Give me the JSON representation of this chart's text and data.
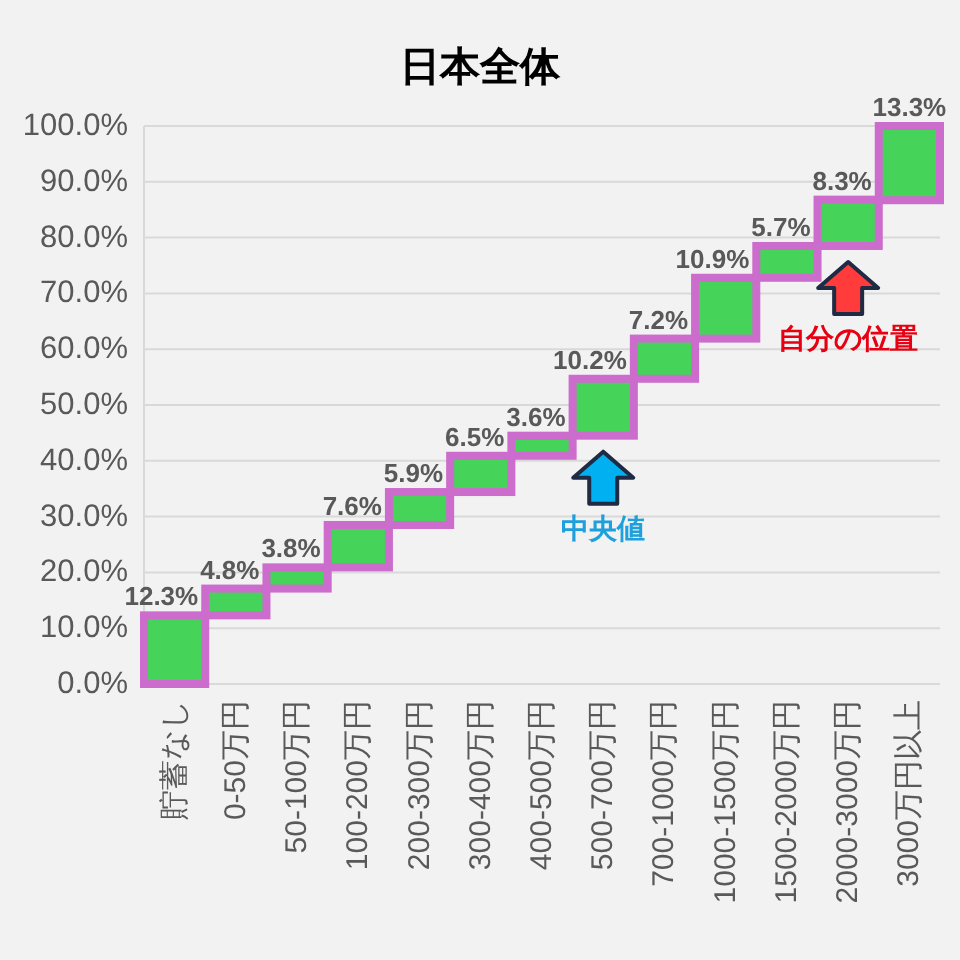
{
  "chart_data": {
    "type": "bar",
    "title": "日本全体",
    "categories": [
      "貯蓄なし",
      "0-50万円",
      "50-100万円",
      "100-200万円",
      "200-300万円",
      "300-400万円",
      "400-500万円",
      "500-700万円",
      "700-1000万円",
      "1000-1500万円",
      "1500-2000万円",
      "2000-3000万円",
      "3000万円以上"
    ],
    "values": [
      12.3,
      4.8,
      3.8,
      7.6,
      5.9,
      6.5,
      3.6,
      10.2,
      7.2,
      10.9,
      5.7,
      8.3,
      13.3
    ],
    "base": [
      0,
      12.3,
      17.1,
      20.9,
      28.5,
      34.4,
      40.9,
      44.5,
      54.7,
      61.9,
      72.8,
      78.5,
      86.7
    ],
    "value_labels": [
      "12.3%",
      "4.8%",
      "3.8%",
      "7.6%",
      "5.9%",
      "6.5%",
      "3.6%",
      "10.2%",
      "7.2%",
      "10.9%",
      "5.7%",
      "8.3%",
      "13.3%"
    ],
    "color": "#46d35a",
    "ylim": [
      0,
      100
    ],
    "yticks": [
      {
        "value": 0,
        "label": "0.0%"
      },
      {
        "value": 10,
        "label": "10.0%"
      },
      {
        "value": 20,
        "label": "20.0%"
      },
      {
        "value": 30,
        "label": "30.0%"
      },
      {
        "value": 40,
        "label": "40.0%"
      },
      {
        "value": 50,
        "label": "50.0%"
      },
      {
        "value": 60,
        "label": "60.0%"
      },
      {
        "value": 70,
        "label": "70.0%"
      },
      {
        "value": 80,
        "label": "80.0%"
      },
      {
        "value": 90,
        "label": "90.0%"
      },
      {
        "value": 100,
        "label": "100.0%"
      }
    ],
    "grid": "y",
    "annotations": [
      {
        "text": "中央値",
        "x": "500-700万円",
        "y": 44.5
      },
      {
        "text": "自分の位置",
        "x": "2000-3000万円",
        "y": 78.5
      }
    ]
  }
}
